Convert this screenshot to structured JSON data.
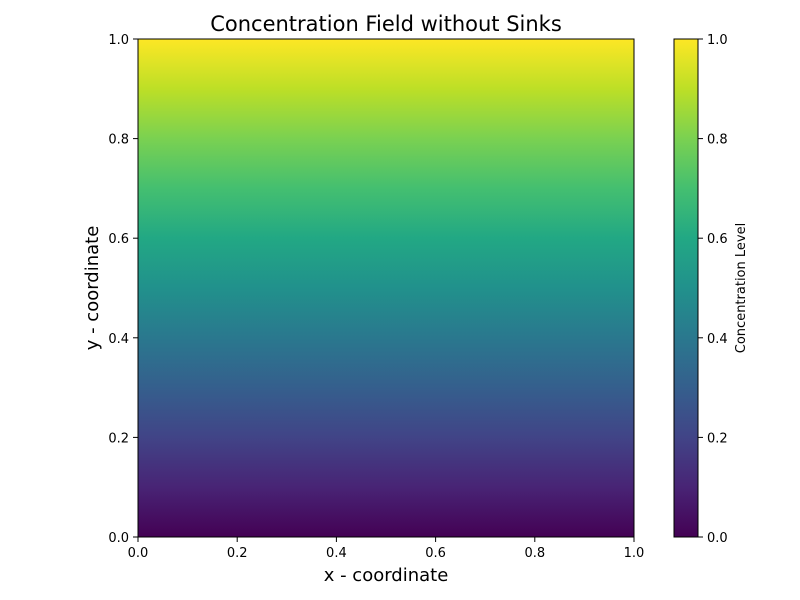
{
  "chart_data": {
    "type": "heatmap",
    "title": "Concentration Field without Sinks",
    "xlabel": "x - coordinate",
    "ylabel": "y - coordinate",
    "xlim": [
      0.0,
      1.0
    ],
    "ylim": [
      0.0,
      1.0
    ],
    "x_ticks": [
      "0.0",
      "0.2",
      "0.4",
      "0.6",
      "0.8",
      "1.0"
    ],
    "y_ticks": [
      "0.0",
      "0.2",
      "0.4",
      "0.6",
      "0.8",
      "1.0"
    ],
    "field": {
      "description_of_values": "concentration equals y coordinate; constant along x",
      "y": [
        0.0,
        0.1,
        0.2,
        0.3,
        0.4,
        0.5,
        0.6,
        0.7,
        0.8,
        0.9,
        1.0
      ],
      "values": [
        0.0,
        0.1,
        0.2,
        0.3,
        0.4,
        0.5,
        0.6,
        0.7,
        0.8,
        0.9,
        1.0
      ]
    },
    "colorbar": {
      "label": "Concentration Level",
      "range": [
        0.0,
        1.0
      ],
      "ticks": [
        "0.0",
        "0.2",
        "0.4",
        "0.6",
        "0.8",
        "1.0"
      ],
      "colormap": "viridis"
    },
    "grid": false
  },
  "colors": {
    "viridis_stops": [
      "#440154",
      "#482475",
      "#414487",
      "#355f8d",
      "#2a788e",
      "#21918c",
      "#22a884",
      "#44bf70",
      "#7ad151",
      "#bddf26",
      "#fde725"
    ]
  }
}
